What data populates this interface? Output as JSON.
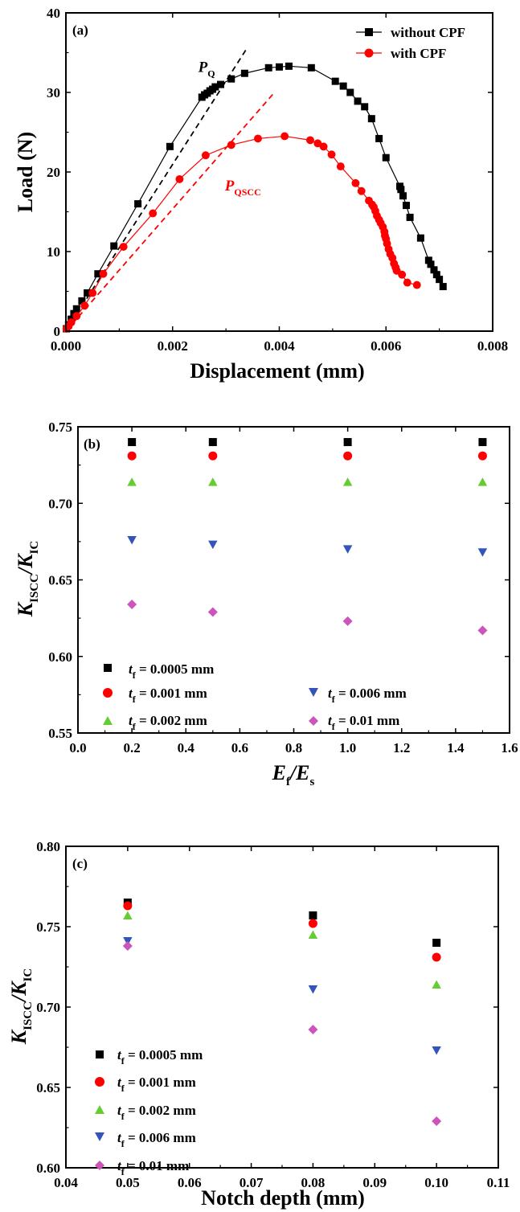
{
  "chart_data": [
    {
      "type": "line",
      "panel_label": "(a)",
      "xlabel": "Displacement (mm)",
      "ylabel": "Load (N)",
      "xlim": [
        0,
        0.008
      ],
      "ylim": [
        0,
        40
      ],
      "x_ticks": [
        0,
        0.002,
        0.004,
        0.006,
        0.008
      ],
      "x_tick_labels": [
        "0.000",
        "0.002",
        "0.004",
        "0.006",
        "0.008"
      ],
      "y_ticks": [
        0,
        10,
        20,
        30,
        40
      ],
      "y_tick_labels": [
        "0",
        "10",
        "20",
        "30",
        "40"
      ],
      "legend_position": "top-right",
      "series": [
        {
          "name": "without CPF",
          "color": "#000000",
          "marker": "square",
          "x": [
            1e-05,
            5e-05,
            0.0001,
            0.00015,
            0.0002,
            0.0003,
            0.0004,
            0.0006,
            0.0009,
            0.00135,
            0.00195,
            0.00255,
            0.0026,
            0.00265,
            0.0027,
            0.00275,
            0.0028,
            0.0029,
            0.0031,
            0.00335,
            0.0038,
            0.004,
            0.00418,
            0.0046,
            0.00505,
            0.0052,
            0.00533,
            0.00547,
            0.0056,
            0.00573,
            0.00587,
            0.006,
            0.00626,
            0.00628,
            0.00632,
            0.00638,
            0.00645,
            0.00665,
            0.0068,
            0.00684,
            0.0069,
            0.00695,
            0.007,
            0.00707
          ],
          "y": [
            0.3,
            0.8,
            1.5,
            2.2,
            2.8,
            3.8,
            4.8,
            7.2,
            10.7,
            16.0,
            23.2,
            29.4,
            29.7,
            29.9,
            30.2,
            30.4,
            30.7,
            31.0,
            31.7,
            32.4,
            33.1,
            33.2,
            33.3,
            33.1,
            31.4,
            30.8,
            30.0,
            28.9,
            28.2,
            26.7,
            24.2,
            21.8,
            18.2,
            17.8,
            17.0,
            15.8,
            14.3,
            11.7,
            8.9,
            8.4,
            7.7,
            7.1,
            6.5,
            5.6
          ]
        },
        {
          "name": "with CPF",
          "color": "#ff0000",
          "marker": "circle",
          "x": [
            1e-05,
            5e-05,
            0.0001,
            0.0002,
            0.00035,
            0.0005,
            0.0007,
            0.00108,
            0.00163,
            0.00213,
            0.00262,
            0.0031,
            0.0036,
            0.0041,
            0.00458,
            0.00472,
            0.00483,
            0.00498,
            0.00515,
            0.00543,
            0.00554,
            0.00568,
            0.00574,
            0.00577,
            0.0058,
            0.00583,
            0.00587,
            0.0059,
            0.00594,
            0.00597,
            0.00598,
            0.006,
            0.00602,
            0.00605,
            0.00608,
            0.00612,
            0.00615,
            0.00618,
            0.0062,
            0.0063,
            0.0064,
            0.00658
          ],
          "y": [
            0.3,
            0.6,
            1.1,
            1.9,
            3.2,
            4.8,
            7.2,
            10.6,
            14.8,
            19.1,
            22.1,
            23.4,
            24.2,
            24.5,
            24.0,
            23.6,
            23.2,
            22.2,
            20.7,
            18.6,
            17.6,
            16.4,
            15.9,
            15.6,
            15.1,
            14.5,
            14.0,
            13.6,
            13.1,
            12.5,
            12.0,
            11.6,
            11.0,
            10.3,
            9.7,
            9.2,
            8.5,
            8.0,
            7.6,
            7.1,
            6.1,
            5.8
          ]
        }
      ],
      "annotations": [
        {
          "text": "P",
          "subscript": "Q",
          "color": "#000000",
          "x": 0.00248,
          "y": 32.6
        },
        {
          "text": "P",
          "subscript": "QSCC",
          "color": "#ff0000",
          "x": 0.00298,
          "y": 17.7
        }
      ],
      "dashed_lines": [
        {
          "color": "#000000",
          "x": [
            0.0,
            0.00337
          ],
          "y": [
            0.0,
            35.3
          ]
        },
        {
          "color": "#ff0000",
          "x": [
            0.0,
            0.00391
          ],
          "y": [
            0.0,
            30.0
          ]
        }
      ]
    },
    {
      "type": "scatter",
      "panel_label": "(b)",
      "xlabel_main": "E",
      "xlabel_sub": "f",
      "xlabel_mid": "/E",
      "xlabel_sub2": "s",
      "ylabel_main": "K",
      "ylabel_sub": "ISCC",
      "ylabel_mid": "/K",
      "ylabel_sub2": "IC",
      "xlim": [
        0,
        1.6
      ],
      "ylim": [
        0.55,
        0.75
      ],
      "x_ticks": [
        0,
        0.2,
        0.4,
        0.6,
        0.8,
        1.0,
        1.2,
        1.4,
        1.6
      ],
      "x_tick_labels": [
        "0.0",
        "0.2",
        "0.4",
        "0.6",
        "0.8",
        "1.0",
        "1.2",
        "1.4",
        "1.6"
      ],
      "y_ticks": [
        0.55,
        0.6,
        0.65,
        0.7,
        0.75
      ],
      "y_tick_labels": [
        "0.55",
        "0.60",
        "0.65",
        "0.70",
        "0.75"
      ],
      "legend_position": "bottom-left",
      "series": [
        {
          "name_main": "t",
          "name_sub": "f",
          "name_rest": " = 0.0005 mm",
          "color": "#000000",
          "marker": "square",
          "x": [
            0.2,
            0.5,
            1.0,
            1.5
          ],
          "y": [
            0.74,
            0.74,
            0.74,
            0.74
          ]
        },
        {
          "name_main": "t",
          "name_sub": "f",
          "name_rest": " = 0.001 mm",
          "color": "#ff0000",
          "marker": "circle",
          "x": [
            0.2,
            0.5,
            1.0,
            1.5
          ],
          "y": [
            0.731,
            0.731,
            0.731,
            0.731
          ]
        },
        {
          "name_main": "t",
          "name_sub": "f",
          "name_rest": " = 0.002 mm",
          "color": "#66cc33",
          "marker": "triangle-up",
          "x": [
            0.2,
            0.5,
            1.0,
            1.5
          ],
          "y": [
            0.714,
            0.714,
            0.714,
            0.714
          ]
        },
        {
          "name_main": "t",
          "name_sub": "f",
          "name_rest": " = 0.006 mm",
          "color": "#3355bb",
          "marker": "triangle-down",
          "x": [
            0.2,
            0.5,
            1.0,
            1.5
          ],
          "y": [
            0.676,
            0.673,
            0.67,
            0.668
          ]
        },
        {
          "name_main": "t",
          "name_sub": "f",
          "name_rest": " = 0.01 mm",
          "color": "#cc55bb",
          "marker": "diamond",
          "x": [
            0.2,
            0.5,
            1.0,
            1.5
          ],
          "y": [
            0.634,
            0.629,
            0.623,
            0.617
          ]
        }
      ]
    },
    {
      "type": "scatter",
      "panel_label": "(c)",
      "xlabel": "Notch depth (mm)",
      "ylabel_main": "K",
      "ylabel_sub": "ISCC",
      "ylabel_mid": "/K",
      "ylabel_sub2": "IC",
      "xlim": [
        0.04,
        0.11
      ],
      "ylim": [
        0.6,
        0.8
      ],
      "x_ticks": [
        0.04,
        0.05,
        0.06,
        0.07,
        0.08,
        0.09,
        0.1,
        0.11
      ],
      "x_tick_labels": [
        "0.04",
        "0.05",
        "0.06",
        "0.07",
        "0.08",
        "0.09",
        "0.10",
        "0.11"
      ],
      "y_ticks": [
        0.6,
        0.65,
        0.7,
        0.75,
        0.8
      ],
      "y_tick_labels": [
        "0.60",
        "0.65",
        "0.70",
        "0.75",
        "0.80"
      ],
      "legend_position": "bottom-left",
      "series": [
        {
          "name_main": "t",
          "name_sub": "f",
          "name_rest": " = 0.0005 mm",
          "color": "#000000",
          "marker": "square",
          "x": [
            0.05,
            0.08,
            0.1
          ],
          "y": [
            0.765,
            0.757,
            0.74
          ]
        },
        {
          "name_main": "t",
          "name_sub": "f",
          "name_rest": " = 0.001 mm",
          "color": "#ff0000",
          "marker": "circle",
          "x": [
            0.05,
            0.08,
            0.1
          ],
          "y": [
            0.763,
            0.752,
            0.731
          ]
        },
        {
          "name_main": "t",
          "name_sub": "f",
          "name_rest": " = 0.002 mm",
          "color": "#66cc33",
          "marker": "triangle-up",
          "x": [
            0.05,
            0.08,
            0.1
          ],
          "y": [
            0.757,
            0.745,
            0.714
          ]
        },
        {
          "name_main": "t",
          "name_sub": "f",
          "name_rest": " = 0.006 mm",
          "color": "#3355bb",
          "marker": "triangle-down",
          "x": [
            0.05,
            0.08,
            0.1
          ],
          "y": [
            0.741,
            0.711,
            0.673
          ]
        },
        {
          "name_main": "t",
          "name_sub": "f",
          "name_rest": " = 0.01 mm",
          "color": "#cc55bb",
          "marker": "diamond",
          "x": [
            0.05,
            0.08,
            0.1
          ],
          "y": [
            0.738,
            0.686,
            0.629
          ]
        }
      ]
    }
  ]
}
